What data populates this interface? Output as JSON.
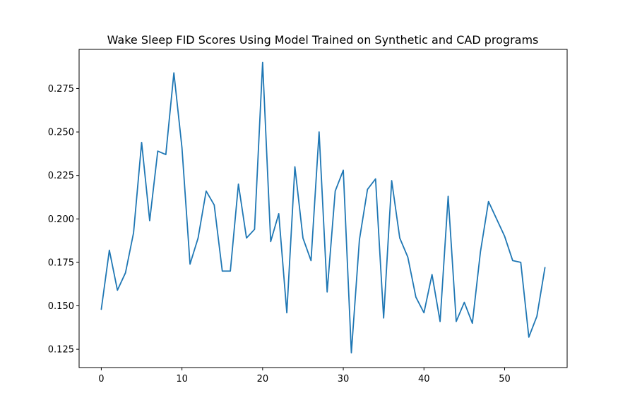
{
  "chart_data": {
    "type": "line",
    "title": "Wake Sleep FID Scores Using Model Trained on Synthetic and CAD programs",
    "xlabel": "",
    "ylabel": "",
    "xlim": [
      -2.75,
      57.75
    ],
    "ylim": [
      0.1145,
      0.2975
    ],
    "xticks": [
      0,
      10,
      20,
      30,
      40,
      50
    ],
    "xtick_labels": [
      "0",
      "10",
      "20",
      "30",
      "40",
      "50"
    ],
    "yticks": [
      0.125,
      0.15,
      0.175,
      0.2,
      0.225,
      0.25,
      0.275
    ],
    "ytick_labels": [
      "0.125",
      "0.150",
      "0.175",
      "0.200",
      "0.225",
      "0.250",
      "0.275"
    ],
    "grid": false,
    "legend": "none",
    "series": [
      {
        "color": "#1f77b4",
        "x": [
          0,
          1,
          2,
          3,
          4,
          5,
          6,
          7,
          8,
          9,
          10,
          11,
          12,
          13,
          14,
          15,
          16,
          17,
          18,
          19,
          20,
          21,
          22,
          23,
          24,
          25,
          26,
          27,
          28,
          29,
          30,
          31,
          32,
          33,
          34,
          35,
          36,
          37,
          38,
          39,
          40,
          41,
          42,
          43,
          44,
          45,
          46,
          47,
          48,
          49,
          50,
          51,
          52,
          53,
          54,
          55
        ],
        "values": [
          0.148,
          0.182,
          0.159,
          0.169,
          0.192,
          0.244,
          0.199,
          0.239,
          0.237,
          0.284,
          0.241,
          0.174,
          0.189,
          0.216,
          0.208,
          0.17,
          0.17,
          0.22,
          0.189,
          0.194,
          0.29,
          0.187,
          0.203,
          0.146,
          0.23,
          0.189,
          0.176,
          0.25,
          0.158,
          0.216,
          0.228,
          0.123,
          0.188,
          0.217,
          0.223,
          0.143,
          0.222,
          0.189,
          0.178,
          0.155,
          0.146,
          0.168,
          0.141,
          0.213,
          0.141,
          0.152,
          0.14,
          0.181,
          0.21,
          0.2,
          0.19,
          0.176,
          0.175,
          0.132,
          0.144,
          0.172
        ]
      }
    ]
  }
}
